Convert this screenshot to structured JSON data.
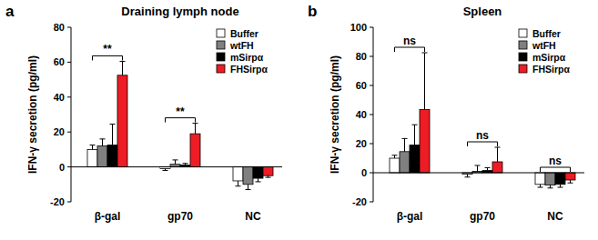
{
  "chart_data": [
    {
      "type": "bar",
      "panel_label": "a",
      "title": "Draining lymph node",
      "ylabel": "IFN-γ secretion (pg/ml)",
      "categories": [
        "β-gal",
        "gp70",
        "NC"
      ],
      "series": [
        {
          "name": "Buffer",
          "color": "#ffffff",
          "values": [
            10,
            -1,
            -8
          ],
          "errors": [
            2.5,
            1,
            3
          ]
        },
        {
          "name": "wtFH",
          "color": "#808080",
          "values": [
            12,
            1.5,
            -10
          ],
          "errors": [
            4,
            2.5,
            3
          ]
        },
        {
          "name": "mSirpα",
          "color": "#000000",
          "values": [
            12.5,
            1,
            -6.5
          ],
          "errors": [
            12,
            1,
            2
          ]
        },
        {
          "name": "FHSirpα",
          "color": "#ee1c24",
          "values": [
            52.5,
            19,
            -5
          ],
          "errors": [
            8,
            6,
            1
          ]
        }
      ],
      "ylim": [
        -20,
        80
      ],
      "yticks": [
        -20,
        0,
        20,
        40,
        60,
        80
      ],
      "legend": "upper right",
      "annotations": [
        {
          "text": "**",
          "category": "β-gal"
        },
        {
          "text": "**",
          "category": "gp70"
        }
      ]
    },
    {
      "type": "bar",
      "panel_label": "b",
      "title": "Spleen",
      "ylabel": "IFN-γ secretion (pg/ml)",
      "categories": [
        "β-gal",
        "gp70",
        "NC"
      ],
      "series": [
        {
          "name": "Buffer",
          "color": "#ffffff",
          "values": [
            10,
            -1,
            -8
          ],
          "errors": [
            2,
            2,
            2
          ]
        },
        {
          "name": "wtFH",
          "color": "#808080",
          "values": [
            14.5,
            1,
            -8.5
          ],
          "errors": [
            9,
            4,
            2
          ]
        },
        {
          "name": "mSirpα",
          "color": "#000000",
          "values": [
            19,
            1.5,
            -8
          ],
          "errors": [
            14,
            2,
            2
          ]
        },
        {
          "name": "FHSirpα",
          "color": "#ee1c24",
          "values": [
            43.5,
            7.5,
            -5
          ],
          "errors": [
            39,
            10,
            2
          ]
        }
      ],
      "ylim": [
        -20,
        100
      ],
      "yticks": [
        -20,
        0,
        20,
        40,
        60,
        80,
        100
      ],
      "legend": "upper right",
      "annotations": [
        {
          "text": "ns",
          "category": "β-gal"
        },
        {
          "text": "ns",
          "category": "gp70"
        },
        {
          "text": "ns",
          "category": "NC"
        }
      ]
    }
  ]
}
